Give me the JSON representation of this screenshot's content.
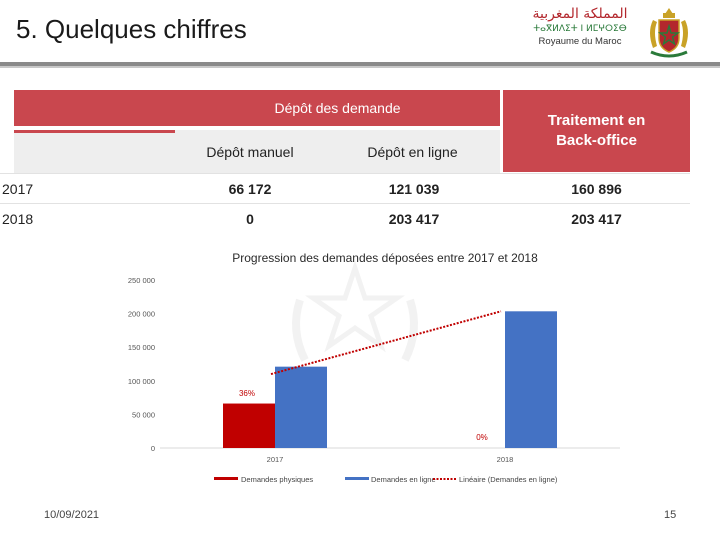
{
  "header": {
    "title": "5.  Quelques chiffres",
    "brand_arabic": "المملكة المغربية",
    "brand_tifinagh": "ⵜⴰⴳⵍⴷⵉⵜ ⵏ ⵍⵎⵖⵔⵉⴱ",
    "brand_french": "Royaume du Maroc"
  },
  "table": {
    "group_header": "Dépôt des demande",
    "col_manual": "Dépôt manuel",
    "col_online": "Dépôt en ligne",
    "col_backoffice": "Traitement en Back-office",
    "rows": [
      {
        "year": "2017",
        "manual": "66 172",
        "online": "121 039",
        "backoffice": "160 896"
      },
      {
        "year": "2018",
        "manual": "0",
        "online": "203 417",
        "backoffice": "203 417"
      }
    ]
  },
  "chart_data": {
    "type": "bar",
    "title": "Progression des demandes déposées entre 2017 et 2018",
    "categories": [
      "2017",
      "2018"
    ],
    "series": [
      {
        "name": "Demandes physiques",
        "values": [
          66172,
          0
        ],
        "color": "#c00000"
      },
      {
        "name": "Demandes en ligne",
        "values": [
          121039,
          203417
        ],
        "color": "#4472c4"
      }
    ],
    "trendline": {
      "name": "Linéaire (Demandes en ligne)",
      "values": [
        110000,
        203417
      ],
      "color": "#c00000"
    },
    "annotations": [
      "36%",
      "0%"
    ],
    "y_ticks": [
      0,
      50000,
      100000,
      150000,
      200000,
      250000
    ],
    "y_tick_labels": [
      "0",
      "50 000",
      "100 000",
      "150 000",
      "200 000",
      "250 000"
    ],
    "ylim": [
      0,
      250000
    ],
    "legend_position": "bottom"
  },
  "footer": {
    "date": "10/09/2021",
    "page": "15"
  }
}
